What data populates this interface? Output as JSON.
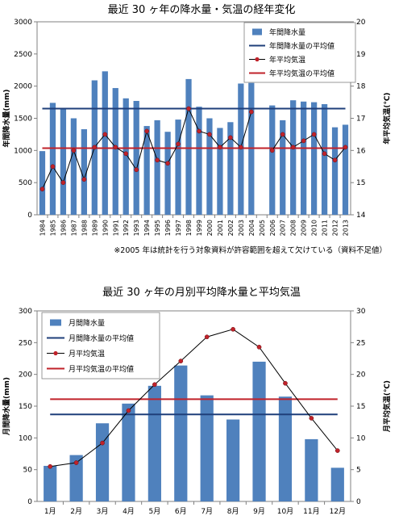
{
  "chart_data": [
    {
      "type": "bar",
      "title": "最近 30 ヶ年の降水量・気温の経年変化",
      "categories": [
        "1984",
        "1985",
        "1986",
        "1987",
        "1988",
        "1989",
        "1990",
        "1991",
        "1992",
        "1993",
        "1994",
        "1995",
        "1996",
        "1997",
        "1998",
        "1999",
        "2000",
        "2001",
        "2002",
        "2003",
        "2004",
        "2005",
        "2006",
        "2007",
        "2008",
        "2009",
        "2010",
        "2011",
        "2012",
        "2013"
      ],
      "ylabel": "年間降水量(mm)",
      "y2label": "年平均気温(℃)",
      "ylim": [
        0,
        3000
      ],
      "y2lim": [
        14,
        20
      ],
      "yticks": [
        "0",
        "500",
        "1000",
        "1500",
        "2000",
        "2500",
        "3000"
      ],
      "y2ticks": [
        "14",
        "15",
        "16",
        "17",
        "18",
        "19",
        "20"
      ],
      "grid": false,
      "legend_position": "top-right",
      "series": [
        {
          "name": "年間降水量",
          "kind": "bar",
          "axis": "left",
          "color": "#4f81bd",
          "values": [
            990,
            1740,
            1660,
            1500,
            1330,
            2090,
            2230,
            1970,
            1810,
            1770,
            1380,
            1470,
            1290,
            1480,
            2110,
            1680,
            1500,
            1350,
            1440,
            2040,
            2050,
            null,
            1700,
            1470,
            1780,
            1760,
            1750,
            1720,
            1360,
            1400
          ]
        },
        {
          "name": "年間降水量の平均値",
          "kind": "hline",
          "axis": "left",
          "color": "#1f3f7a",
          "value": 1650
        },
        {
          "name": "年平均気温",
          "kind": "line",
          "axis": "right",
          "color": "#000000",
          "marker_color": "#c0222a",
          "values": [
            14.8,
            15.5,
            15.0,
            16.0,
            15.1,
            16.1,
            16.5,
            16.1,
            15.9,
            15.4,
            16.6,
            15.7,
            15.6,
            16.2,
            17.3,
            16.6,
            16.5,
            16.1,
            16.4,
            16.1,
            17.2,
            null,
            16.0,
            16.5,
            16.1,
            16.3,
            16.5,
            15.9,
            15.7,
            16.1
          ]
        },
        {
          "name": "年平均気温の平均値",
          "kind": "hline",
          "axis": "right",
          "color": "#c0222a",
          "value": 16.07
        }
      ],
      "footnote": "※2005 年は統計を行う対象資料が許容範囲を超えて欠けている（資料不足値）"
    },
    {
      "type": "bar",
      "title": "最近 30 ヶ年の月別平均降水量と平均気温",
      "categories": [
        "1月",
        "2月",
        "3月",
        "4月",
        "5月",
        "6月",
        "7月",
        "8月",
        "9月",
        "10月",
        "11月",
        "12月"
      ],
      "ylabel": "月間降水量(mm)",
      "y2label": "月平均気温(℃)",
      "ylim": [
        0,
        300
      ],
      "y2lim": [
        0,
        30
      ],
      "yticks": [
        "0",
        "50",
        "100",
        "150",
        "200",
        "250",
        "300"
      ],
      "y2ticks": [
        "0",
        "5",
        "10",
        "15",
        "20",
        "25",
        "30"
      ],
      "grid": false,
      "legend_position": "top-left",
      "series": [
        {
          "name": "月間降水量",
          "kind": "bar",
          "axis": "left",
          "color": "#4f81bd",
          "values": [
            56,
            73,
            123,
            154,
            182,
            214,
            167,
            129,
            220,
            165,
            98,
            53
          ]
        },
        {
          "name": "月間降水量の平均値",
          "kind": "hline",
          "axis": "left",
          "color": "#1f3f7a",
          "value": 137
        },
        {
          "name": "月平均気温",
          "kind": "line",
          "axis": "right",
          "color": "#000000",
          "marker_color": "#c0222a",
          "values": [
            5.5,
            6.1,
            9.2,
            14.3,
            18.4,
            22.1,
            25.9,
            27.1,
            24.3,
            18.6,
            13.1,
            8.0
          ]
        },
        {
          "name": "月平均気温の平均値",
          "kind": "hline",
          "axis": "right",
          "color": "#c0222a",
          "value": 16.1
        }
      ]
    }
  ]
}
